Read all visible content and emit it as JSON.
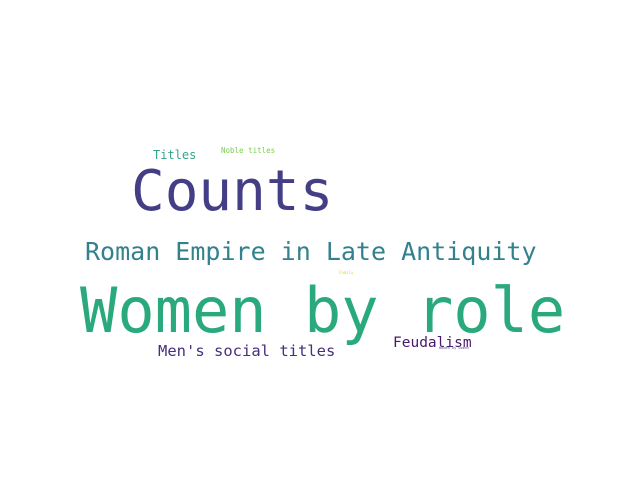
{
  "wordcloud": {
    "background": "#ffffff",
    "words": [
      {
        "id": "women_by_role",
        "text": "Women by role",
        "color": "#2aaa7c"
      },
      {
        "id": "counts",
        "text": "Counts",
        "color": "#433e85"
      },
      {
        "id": "roman_empire",
        "text": "Roman Empire in Late Antiquity",
        "color": "#33818d"
      },
      {
        "id": "mens_social_titles",
        "text": "Men's social titles",
        "color": "#472f7d"
      },
      {
        "id": "feudalism",
        "text": "Feudalism",
        "color": "#48186a"
      },
      {
        "id": "titles",
        "text": "Titles",
        "color": "#35a58a"
      },
      {
        "id": "noble_titles",
        "text": "Noble titles",
        "color": "#7ad151"
      },
      {
        "id": "family",
        "text": "Family",
        "color": "#d7d93a"
      },
      {
        "id": "women_tiny",
        "text": "Women by women",
        "color": "#5c5c9c"
      }
    ]
  }
}
